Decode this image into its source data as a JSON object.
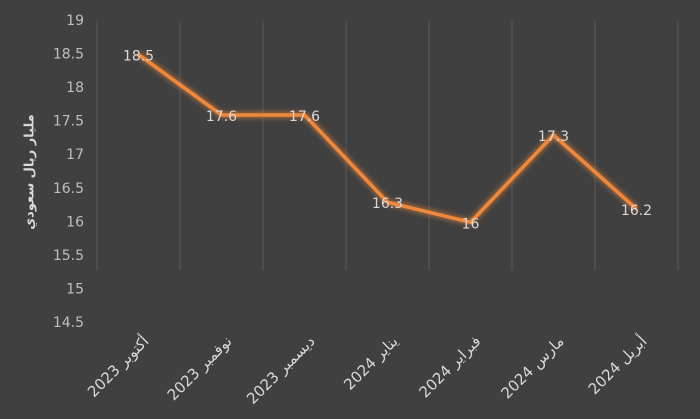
{
  "chart_data": {
    "type": "line",
    "y_label": "مليار ريال سعودي",
    "categories": [
      "أكتوبر 2023",
      "نوفمبر 2023",
      "ديسمبر 2023",
      "يناير 2024",
      "فبراير 2024",
      "مارس 2024",
      "أبريل 2024"
    ],
    "values": [
      18.5,
      17.6,
      17.6,
      16.3,
      16,
      17.3,
      16.2
    ],
    "color": "#f0883a",
    "ylim": [
      14.5,
      19
    ],
    "yticks": [
      14.5,
      15,
      15.5,
      16,
      16.5,
      17,
      17.5,
      18,
      18.5,
      19
    ]
  }
}
